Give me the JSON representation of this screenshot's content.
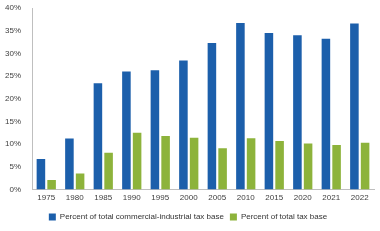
{
  "chart_data": {
    "type": "bar",
    "categories": [
      "1975",
      "1980",
      "1985",
      "1990",
      "1995",
      "2000",
      "2005",
      "2010",
      "2015",
      "2020",
      "2021",
      "2022"
    ],
    "series": [
      {
        "name": "Percent of total commercial-industrial tax base",
        "color": "#1c5fab",
        "values": [
          6.7,
          11.2,
          23.4,
          26.0,
          26.3,
          28.4,
          32.3,
          36.7,
          34.5,
          34.0,
          33.2,
          36.6
        ]
      },
      {
        "name": "Percent of total tax base",
        "color": "#8db33b",
        "values": [
          2.1,
          3.5,
          8.1,
          12.5,
          11.8,
          11.4,
          9.1,
          11.3,
          10.7,
          10.1,
          9.8,
          10.3
        ]
      }
    ],
    "ylim": [
      0,
      40
    ],
    "yticks": [
      {
        "value": 0,
        "label": "0%"
      },
      {
        "value": 5,
        "label": "5%"
      },
      {
        "value": 10,
        "label": "10%"
      },
      {
        "value": 15,
        "label": "15%"
      },
      {
        "value": 20,
        "label": "20%"
      },
      {
        "value": 25,
        "label": "25%"
      },
      {
        "value": 30,
        "label": "30%"
      },
      {
        "value": 35,
        "label": "35%"
      },
      {
        "value": 40,
        "label": "40%"
      }
    ],
    "grid": false,
    "legend": "bottom"
  }
}
